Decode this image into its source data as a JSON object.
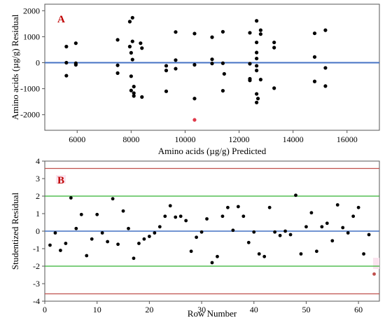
{
  "chart_data": [
    {
      "type": "scatter",
      "panel_label": "A",
      "xlabel": "Amino acids (µg/g) Predicted",
      "ylabel": "Amino acids (µg/g) Residual",
      "xlim": [
        4800,
        17200
      ],
      "ylim": [
        -2600,
        2250
      ],
      "xticks": [
        6000,
        8000,
        10000,
        12000,
        14000,
        16000
      ],
      "yticks": [
        -2000,
        -1000,
        0,
        1000,
        2000
      ],
      "zero_line_color": "#4472c4",
      "point_color": "#000000",
      "highlight_color": "#e0394a",
      "points": [
        [
          5600,
          620
        ],
        [
          5600,
          0
        ],
        [
          5600,
          -500
        ],
        [
          5950,
          750
        ],
        [
          5950,
          -20
        ],
        [
          5950,
          -80
        ],
        [
          7500,
          880
        ],
        [
          7500,
          -100
        ],
        [
          7500,
          -400
        ],
        [
          7950,
          1580
        ],
        [
          7950,
          620
        ],
        [
          8000,
          380
        ],
        [
          8000,
          -520
        ],
        [
          8000,
          -1070
        ],
        [
          8050,
          1730
        ],
        [
          8050,
          820
        ],
        [
          8050,
          120
        ],
        [
          8100,
          -920
        ],
        [
          8100,
          -1170
        ],
        [
          8100,
          -1280
        ],
        [
          8350,
          750
        ],
        [
          8400,
          560
        ],
        [
          8400,
          -1320
        ],
        [
          9300,
          -120
        ],
        [
          9300,
          -300
        ],
        [
          9300,
          -1100
        ],
        [
          9650,
          1180
        ],
        [
          9650,
          100
        ],
        [
          9650,
          -230
        ],
        [
          10350,
          1120
        ],
        [
          10350,
          -80
        ],
        [
          10350,
          -1380
        ],
        [
          11000,
          980
        ],
        [
          11000,
          130
        ],
        [
          11000,
          -30
        ],
        [
          11400,
          1190
        ],
        [
          11400,
          -20
        ],
        [
          11400,
          -1080
        ],
        [
          11450,
          -430
        ],
        [
          12400,
          1150
        ],
        [
          12400,
          -40
        ],
        [
          12400,
          -620
        ],
        [
          12400,
          -680
        ],
        [
          12650,
          1610
        ],
        [
          12650,
          780
        ],
        [
          12650,
          390
        ],
        [
          12650,
          160
        ],
        [
          12650,
          -120
        ],
        [
          12650,
          -300
        ],
        [
          12650,
          -1200
        ],
        [
          12650,
          -1530
        ],
        [
          12700,
          -1380
        ],
        [
          12800,
          1250
        ],
        [
          12800,
          1100
        ],
        [
          12800,
          -650
        ],
        [
          13300,
          780
        ],
        [
          13300,
          580
        ],
        [
          13300,
          -980
        ],
        [
          14800,
          1130
        ],
        [
          14800,
          220
        ],
        [
          14800,
          -720
        ],
        [
          15200,
          1250
        ],
        [
          15200,
          -200
        ],
        [
          15200,
          -900
        ]
      ],
      "highlight_points": [
        [
          10350,
          -2200
        ]
      ]
    },
    {
      "type": "line",
      "panel_label": "B",
      "xlabel": "Row Number",
      "ylabel": "Studentized Residual",
      "xlim": [
        0,
        64
      ],
      "ylim": [
        -4,
        4
      ],
      "xticks": [
        0,
        10,
        20,
        30,
        40,
        50,
        60
      ],
      "yticks": [
        -4,
        -3,
        -2,
        -1,
        0,
        1,
        2,
        3,
        4
      ],
      "reference_lines": [
        {
          "y": 0,
          "color": "#4472c4"
        },
        {
          "y": 2,
          "color": "#33b233"
        },
        {
          "y": -2,
          "color": "#33b233"
        },
        {
          "y": 3.58,
          "color": "#c0504d"
        },
        {
          "y": -3.58,
          "color": "#c0504d"
        }
      ],
      "point_color": "#000000",
      "highlight_color": "#c0504d",
      "series": [
        {
          "x": [
            1,
            2,
            3,
            4,
            5,
            6,
            7,
            8,
            9,
            10,
            11,
            12,
            13,
            14,
            15,
            16,
            17,
            18,
            19,
            20,
            21,
            22,
            23,
            24,
            25,
            26,
            27,
            28,
            29,
            30,
            31,
            32,
            33,
            34,
            35,
            36,
            37,
            38,
            39,
            40,
            41,
            42,
            43,
            44,
            45,
            46,
            47,
            48,
            49,
            50,
            51,
            52,
            53,
            54,
            55,
            56,
            57,
            58,
            59,
            60,
            61,
            62
          ],
          "y": [
            -0.8,
            -0.1,
            -1.1,
            -0.7,
            1.9,
            0.15,
            0.95,
            -1.4,
            -0.45,
            0.95,
            -0.1,
            -0.6,
            1.85,
            -0.75,
            1.15,
            0.15,
            -1.55,
            -0.7,
            -0.45,
            -0.3,
            -0.1,
            0.25,
            0.85,
            1.45,
            0.8,
            0.85,
            0.6,
            -1.15,
            -0.35,
            -0.05,
            0.7,
            -1.8,
            -1.45,
            0.85,
            1.35,
            0.05,
            1.4,
            0.85,
            -0.65,
            -0.05,
            -1.3,
            -1.45,
            1.35,
            -0.05,
            -0.25,
            0,
            -0.2,
            2.05,
            -1.3,
            0.25,
            1.05,
            -1.15,
            0.25,
            0.45,
            -0.55,
            1.5,
            0.2,
            -0.1,
            0.85,
            1.35,
            -1.3,
            -0.2
          ]
        }
      ],
      "highlight_points": [
        [
          63,
          -2.45
        ]
      ]
    }
  ]
}
